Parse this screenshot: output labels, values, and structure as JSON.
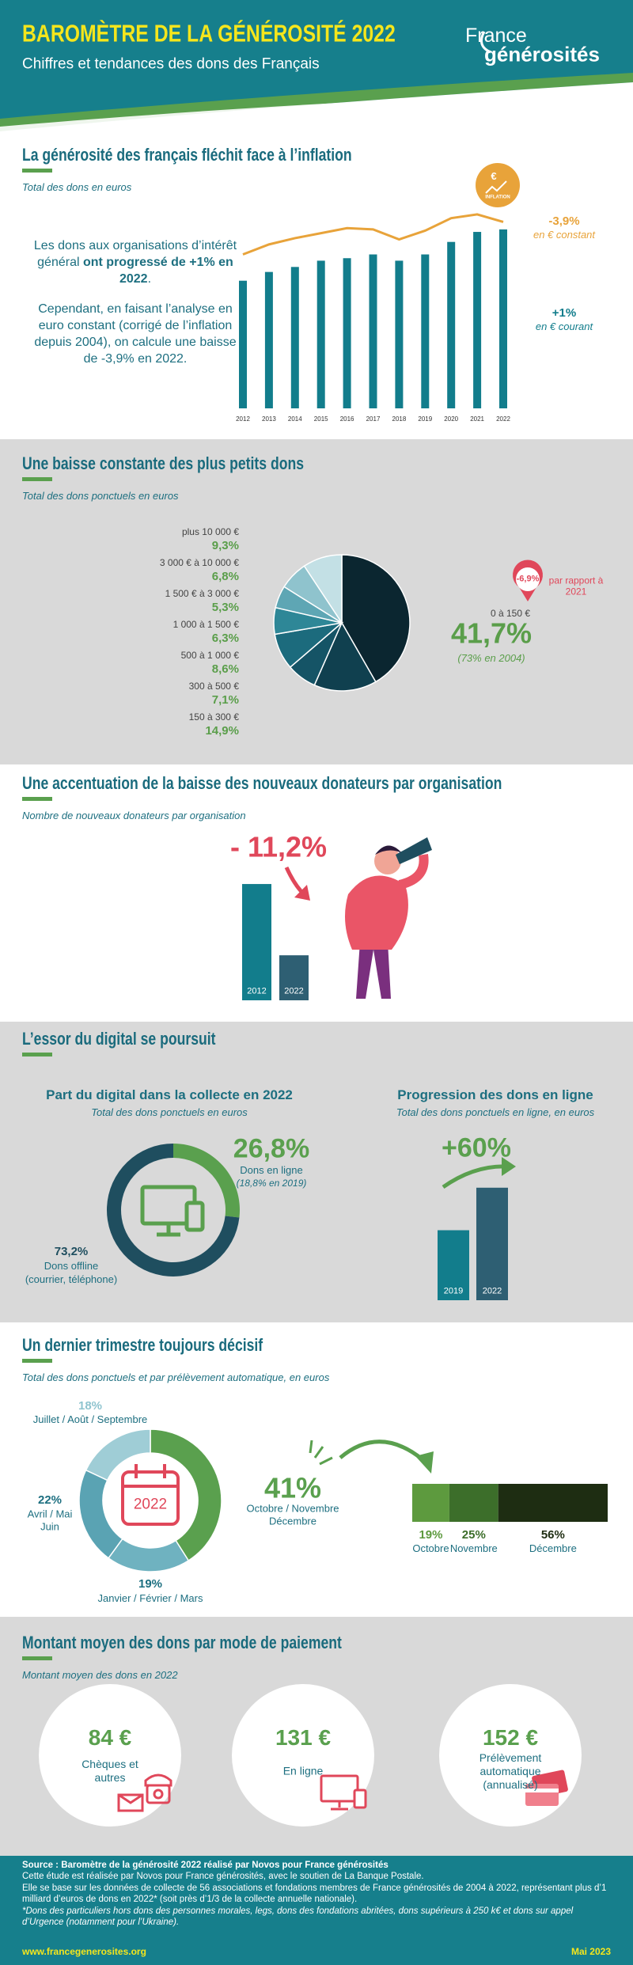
{
  "header": {
    "title": "BAROMÈTRE DE LA GÉNÉROSITÉ 2022",
    "subtitle": "Chiffres et tendances des dons des Français",
    "logo": [
      "France",
      "générosités"
    ]
  },
  "sections": [
    {
      "title": "La générosité des français fléchit face à l’inflation",
      "subtitle": "Total des dons en euros",
      "paragraphs": [
        [
          "Les dons aux organisations d’intérêt général ",
          "ont progressé de +1% en 2022",
          "."
        ],
        [
          "Cependant, en faisant l’analyse en euro constant (corrigé de l’inflation depuis 2004), on calcule une baisse de -3,9% en 2022."
        ]
      ]
    },
    {
      "title": "Une baisse constante des plus petits dons",
      "subtitle": "Total des dons ponctuels en euros"
    },
    {
      "title": "Une accentuation de la baisse des nouveaux donateurs par organisation",
      "subtitle": "Nombre de nouveaux donateurs par organisation"
    },
    {
      "title": "L’essor du digital se poursuit"
    },
    {
      "title": "Un dernier trimestre toujours décisif",
      "subtitle": "Total des dons ponctuels et par prélèvement automatique, en euros"
    },
    {
      "title": "Montant moyen des dons par mode de paiement",
      "subtitle": "Montant moyen des dons en 2022",
      "items": [
        {
          "amount": "84 €",
          "label": "Chèques et autres"
        },
        {
          "amount": "131 €",
          "label": "En ligne"
        },
        {
          "amount": "152 €",
          "label": "Prélèvement automatique (annualisé)"
        }
      ]
    }
  ],
  "chart_data": [
    {
      "type": "bar",
      "categories": [
        "2012",
        "2013",
        "2014",
        "2015",
        "2016",
        "2017",
        "2018",
        "2019",
        "2020",
        "2021",
        "2022"
      ],
      "ylim": [
        0,
        160
      ],
      "series": [
        {
          "type": "bar",
          "color": "#127d8c",
          "values": [
            102,
            109,
            113,
            118,
            120,
            123,
            118,
            123,
            133,
            141,
            143
          ]
        },
        {
          "type": "line",
          "color": "#e8a33a",
          "values": [
            123,
            131,
            136,
            140,
            144,
            143,
            135,
            142,
            152,
            155,
            149
          ]
        }
      ],
      "annotations": [
        {
          "text": "-3,9%",
          "note": "en € constant",
          "color": "#e8a33a"
        },
        {
          "text": "+1%",
          "note": "en € courant",
          "color": "#127d8c"
        }
      ],
      "icon": {
        "symbol": "€",
        "label": "INFLATION"
      }
    },
    {
      "type": "pie",
      "categories": [
        "plus 10 000 €",
        "3 000 € à 10 000 €",
        "1 500 € à 3 000 €",
        "1 000 à 1 500 €",
        "500 à 1 000 €",
        "300 à 500 €",
        "150 à 300 €",
        "0 à 150 €"
      ],
      "values": [
        9.3,
        6.8,
        5.3,
        6.3,
        8.6,
        7.1,
        14.9,
        41.7
      ],
      "value_labels": [
        "9,3%",
        "6,8%",
        "5,3%",
        "6,3%",
        "8,6%",
        "7,1%",
        "14,9%",
        "41,7%"
      ],
      "colors": [
        "#c3e0e5",
        "#8fc3cd",
        "#5ea6b4",
        "#2e8797",
        "#1c6b7d",
        "#155466",
        "#10404f",
        "#0b2630"
      ],
      "note": "(73% en 2004)",
      "change": "-6,9%",
      "change_note": "par rapport à 2021"
    },
    {
      "type": "bar",
      "categories": [
        "2012",
        "2022"
      ],
      "values": [
        93,
        36
      ],
      "colors": [
        "#127d8c",
        "#2e5f73"
      ],
      "ylim": [
        0,
        100
      ],
      "change": "- 11,2%"
    },
    {
      "type": "donut",
      "title": "Part du digital dans la collecte en 2022",
      "subtitle": "Total des dons ponctuels en euros",
      "categories": [
        "Dons en ligne",
        "Dons offline"
      ],
      "notes": [
        "(18,8% en 2019)",
        "(courrier, téléphone)"
      ],
      "values": [
        26.8,
        73.2
      ],
      "value_labels": [
        "26,8%",
        "73,2%"
      ],
      "colors": [
        "#5aa04e",
        "#1f4e5f"
      ]
    },
    {
      "type": "bar",
      "title": "Progression des dons en ligne",
      "subtitle": "Total des dons ponctuels en ligne, en euros",
      "categories": [
        "2019",
        "2022"
      ],
      "values": [
        56,
        90
      ],
      "colors": [
        "#127d8c",
        "#2e5f73"
      ],
      "ylim": [
        0,
        100
      ],
      "change": "+60%"
    },
    {
      "type": "donut",
      "categories": [
        "Juillet / Août / Septembre",
        "Avril / Mai Juin",
        "Janvier / Février / Mars",
        "Octobre / Novembre Décembre"
      ],
      "values": [
        18,
        22,
        19,
        41
      ],
      "value_labels": [
        "18%",
        "22%",
        "19%",
        "41%"
      ],
      "colors": [
        "#9fcdd6",
        "#5aa3b3",
        "#6fb2c0",
        "#5aa04e"
      ],
      "center_label": "2022"
    },
    {
      "type": "stacked-bar",
      "categories": [
        "Octobre",
        "Novembre",
        "Décembre"
      ],
      "values": [
        19,
        25,
        56
      ],
      "value_labels": [
        "19%",
        "25%",
        "56%"
      ],
      "colors": [
        "#5d9a3e",
        "#3c6e2a",
        "#1e2d12"
      ],
      "xlim": [
        0,
        100
      ]
    }
  ],
  "footer": {
    "source": "Source : Baromètre de la générosité 2022 réalisé par Novos pour France générosités",
    "lines": [
      "Cette étude est réalisée par Novos pour France générosités, avec le soutien de La Banque Postale.",
      "Elle se base sur les données de collecte de 56 associations et fondations membres de France générosités de 2004 à 2022, représentant plus d’1 milliard d’euros de dons en 2022* (soit près d’1/3 de la collecte annuelle nationale)."
    ],
    "note": "*Dons des particuliers hors dons des personnes morales, legs, dons des fondations abritées, dons supérieurs à 250 k€ et dons sur appel d’Urgence (notamment pour l’Ukraine).",
    "url": "www.francegenerosites.org",
    "date": "Mai 2023"
  }
}
